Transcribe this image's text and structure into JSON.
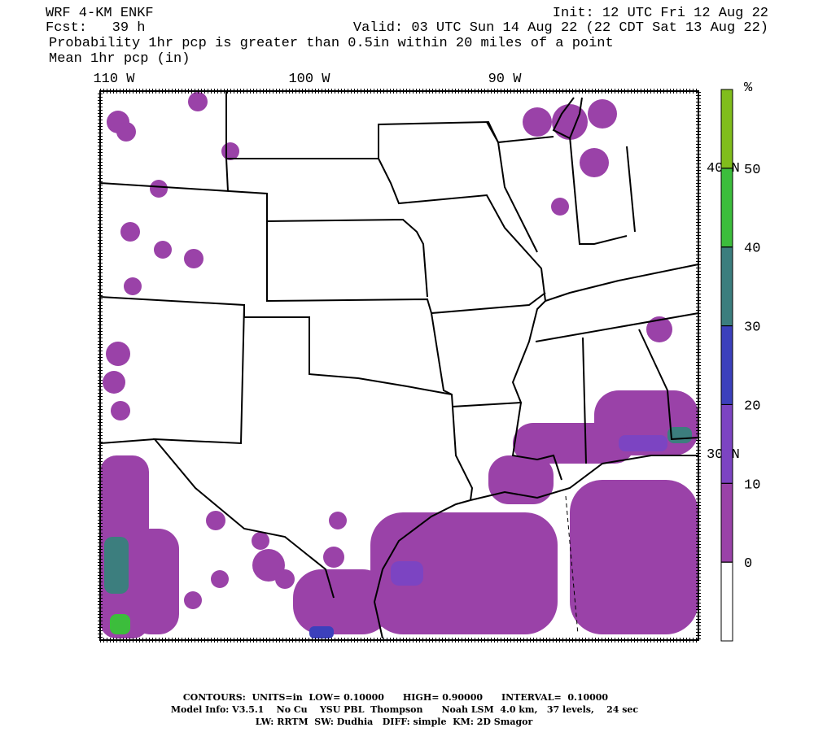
{
  "header": {
    "model": "WRF 4-KM ENKF",
    "forecast": "Fcst:   39 h",
    "init": "Init: 12 UTC Fri 12 Aug 22",
    "valid": "Valid: 03 UTC Sun 14 Aug 22 (22 CDT Sat 13 Aug 22)",
    "field": "Probability 1hr pcp is greater than 0.5in within 20 miles of a point",
    "contour_field": "Mean 1hr pcp (in)"
  },
  "map": {
    "lon_labels": [
      "110 W",
      "100 W",
      "90 W"
    ],
    "lat_labels": [
      "40 N",
      "30 N"
    ]
  },
  "colorbar": {
    "unit": "%",
    "ticks": [
      0,
      10,
      20,
      30,
      40,
      50
    ],
    "colors": [
      "#ffffff",
      "#9a42a8",
      "#7c44c2",
      "#3c40bc",
      "#3c7e7e",
      "#3cbd3c",
      "#80bd1c"
    ]
  },
  "footer": [
    "CONTOURS:  UNITS=in  LOW= 0.10000      HIGH= 0.90000      INTERVAL=  0.10000",
    "Model Info: V3.5.1    No Cu    YSU PBL  Thompson      Noah LSM  4.0 km,   37 levels,    24 sec",
    "LW: RRTM  SW: Dudhia   DIFF: simple  KM: 2D Smagor"
  ]
}
